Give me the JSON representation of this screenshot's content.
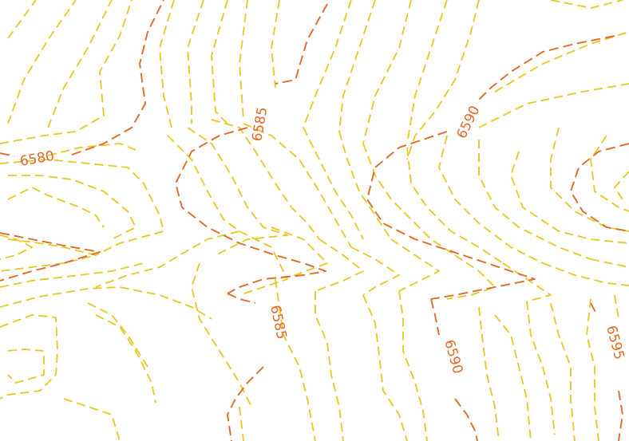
{
  "map": {
    "colors": {
      "background": "#ffffff",
      "minor_contour": "#e6c81e",
      "index_contour": "#e06a26"
    },
    "contour_labels": [
      {
        "id": "label-6580",
        "text": "6580"
      },
      {
        "id": "label-6585-top",
        "text": "6585"
      },
      {
        "id": "label-6590-top",
        "text": "6590"
      },
      {
        "id": "label-6585-bottom",
        "text": "6585"
      },
      {
        "id": "label-6590-bottom",
        "text": "6590"
      },
      {
        "id": "label-6595",
        "text": "6595"
      }
    ]
  }
}
